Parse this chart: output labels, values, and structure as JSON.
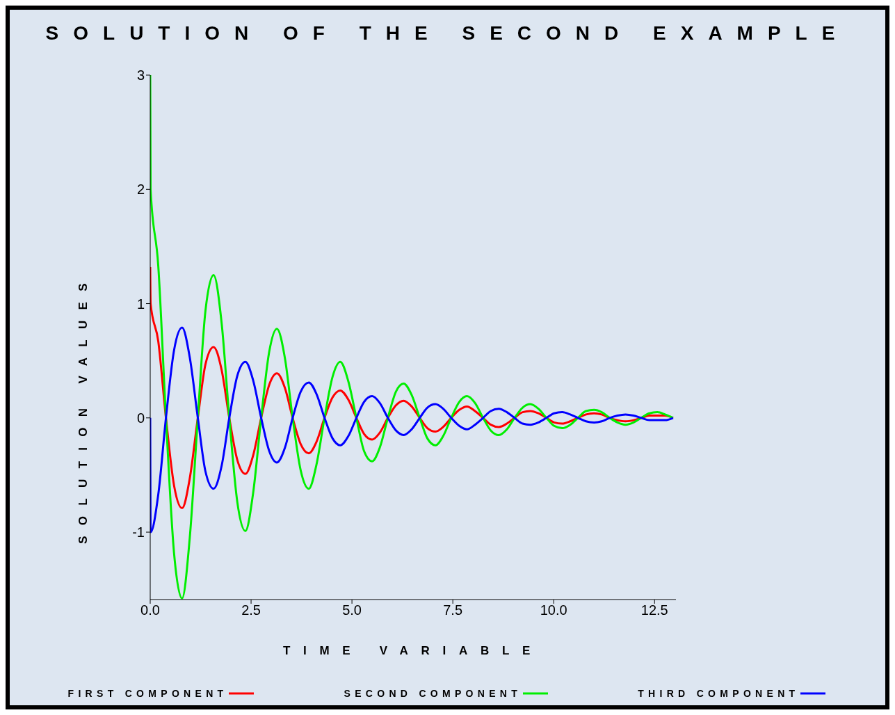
{
  "chart_data": {
    "type": "line",
    "title": "SOLUTION OF THE SECOND EXAMPLE",
    "xlabel": "TIME VARIABLE",
    "ylabel": "SOLUTION VALUES",
    "x": [
      0,
      0.01,
      0.2,
      0.39,
      0.59,
      0.79,
      0.98,
      1.18,
      1.37,
      1.57,
      1.77,
      1.96,
      2.16,
      2.36,
      2.55,
      2.75,
      2.95,
      3.14,
      3.34,
      3.53,
      3.73,
      3.93,
      4.12,
      4.32,
      4.52,
      4.71,
      4.91,
      5.11,
      5.3,
      5.5,
      5.69,
      5.89,
      6.09,
      6.28,
      6.48,
      6.68,
      6.87,
      7.07,
      7.26,
      7.46,
      7.66,
      7.85,
      8.05,
      8.25,
      8.44,
      8.64,
      8.84,
      9.03,
      9.23,
      9.42,
      9.62,
      9.82,
      10.01,
      10.21,
      10.41,
      10.6,
      10.8,
      11,
      11.19,
      11.39,
      11.58,
      11.78,
      11.98,
      12.17,
      12.37,
      12.57,
      12.76,
      12.96
    ],
    "series": [
      {
        "name": "FIRST COMPONENT",
        "color": "#ff0000",
        "values": [
          1.32,
          1.0,
          0.67,
          0,
          -0.59,
          -0.79,
          -0.53,
          0,
          0.47,
          0.62,
          0.42,
          0,
          -0.37,
          -0.49,
          -0.33,
          0,
          0.29,
          0.39,
          0.26,
          0,
          -0.23,
          -0.31,
          -0.21,
          0,
          0.18,
          0.24,
          0.16,
          0,
          -0.14,
          -0.19,
          -0.13,
          0,
          0.11,
          0.15,
          0.1,
          0,
          -0.09,
          -0.12,
          -0.08,
          0,
          0.07,
          0.1,
          0.06,
          0,
          -0.06,
          -0.08,
          -0.05,
          0,
          0.05,
          0.06,
          0.04,
          0,
          -0.04,
          -0.05,
          -0.03,
          0,
          0.03,
          0.04,
          0.03,
          0,
          -0.02,
          -0.03,
          -0.02,
          0,
          0.02,
          0.02,
          0.02,
          0
        ]
      },
      {
        "name": "SECOND COMPONENT",
        "color": "#00ee00",
        "values": [
          3.0,
          2.0,
          1.33,
          0,
          -1.18,
          -1.58,
          -1.05,
          0,
          0.94,
          1.25,
          0.83,
          0,
          -0.74,
          -0.99,
          -0.66,
          0,
          0.58,
          0.78,
          0.52,
          0,
          -0.46,
          -0.62,
          -0.41,
          0,
          0.36,
          0.49,
          0.32,
          0,
          -0.29,
          -0.38,
          -0.26,
          0,
          0.23,
          0.3,
          0.2,
          0,
          -0.18,
          -0.24,
          -0.16,
          0,
          0.14,
          0.19,
          0.13,
          0,
          -0.11,
          -0.15,
          -0.1,
          0,
          0.09,
          0.12,
          0.08,
          0,
          -0.07,
          -0.09,
          -0.06,
          0,
          0.06,
          0.07,
          0.05,
          0,
          -0.04,
          -0.06,
          -0.04,
          0,
          0.04,
          0.05,
          0.03,
          0
        ]
      },
      {
        "name": "THIRD COMPONENT",
        "color": "#0000ff",
        "values": [
          0,
          -1.0,
          -0.67,
          0,
          0.59,
          0.79,
          0.53,
          0,
          -0.47,
          -0.62,
          -0.42,
          0,
          0.37,
          0.49,
          0.33,
          0,
          -0.29,
          -0.39,
          -0.26,
          0,
          0.23,
          0.31,
          0.21,
          0,
          -0.18,
          -0.24,
          -0.16,
          0,
          0.14,
          0.19,
          0.13,
          0,
          -0.11,
          -0.15,
          -0.1,
          0,
          0.09,
          0.12,
          0.08,
          0,
          -0.07,
          -0.1,
          -0.06,
          0,
          0.06,
          0.08,
          0.05,
          0,
          -0.05,
          -0.06,
          -0.04,
          0,
          0.04,
          0.05,
          0.03,
          0,
          -0.03,
          -0.04,
          -0.03,
          0,
          0.02,
          0.03,
          0.02,
          0,
          -0.02,
          -0.02,
          -0.02,
          0
        ]
      }
    ],
    "xlim": [
      0,
      13.03
    ],
    "ylim": [
      -1.59,
      3
    ],
    "xticks": [
      {
        "value": 0,
        "label": "0.0"
      },
      {
        "value": 2.5,
        "label": "2.5"
      },
      {
        "value": 5,
        "label": "5.0"
      },
      {
        "value": 7.5,
        "label": "7.5"
      },
      {
        "value": 10,
        "label": "10.0"
      },
      {
        "value": 12.5,
        "label": "12.5"
      }
    ],
    "yticks": [
      -1,
      0,
      1,
      2,
      3
    ],
    "legend": "bottom",
    "grid": false,
    "marker": "none",
    "line_style": "solid"
  }
}
